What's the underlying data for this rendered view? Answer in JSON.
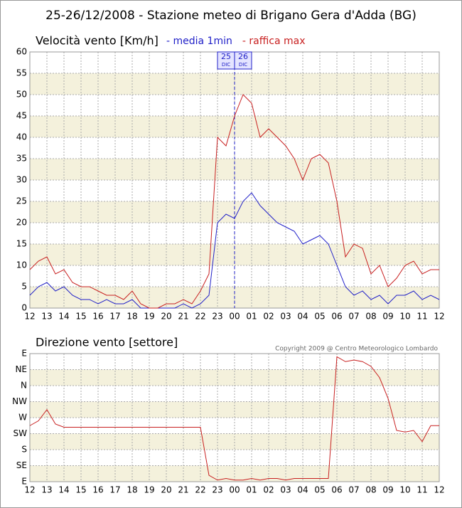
{
  "title": "25-26/12/2008 - Stazione meteo di Brigano Gera d'Adda (BG)",
  "chart_data": [
    {
      "type": "line",
      "title": "Velocità vento [Km/h]",
      "x": [
        0,
        0.5,
        1,
        1.5,
        2,
        2.5,
        3,
        3.5,
        4,
        4.5,
        5,
        5.5,
        6,
        6.5,
        7,
        7.5,
        8,
        8.5,
        9,
        9.5,
        10,
        10.5,
        11,
        11.5,
        12,
        12.5,
        13,
        13.5,
        14,
        14.5,
        15,
        15.5,
        16,
        16.5,
        17,
        17.5,
        18,
        18.5,
        19,
        19.5,
        20,
        20.5,
        21,
        21.5,
        22,
        22.5,
        23,
        23.5,
        24
      ],
      "series": [
        {
          "name": "- media 1min",
          "color": "#2020c8",
          "values": [
            3,
            5,
            6,
            4,
            5,
            3,
            2,
            2,
            1,
            2,
            1,
            1,
            2,
            0,
            0,
            0,
            0,
            0,
            1,
            0,
            1,
            3,
            20,
            22,
            21,
            25,
            27,
            24,
            22,
            20,
            19,
            18,
            15,
            16,
            17,
            15,
            10,
            5,
            3,
            4,
            2,
            3,
            1,
            3,
            3,
            4,
            2,
            3,
            2
          ]
        },
        {
          "name": "- raffica max",
          "color": "#c82020",
          "values": [
            9,
            11,
            12,
            8,
            9,
            6,
            5,
            5,
            4,
            3,
            3,
            2,
            4,
            1,
            0,
            0,
            1,
            1,
            2,
            1,
            4,
            8,
            40,
            38,
            45,
            50,
            48,
            40,
            42,
            40,
            38,
            35,
            30,
            35,
            36,
            34,
            25,
            12,
            15,
            14,
            8,
            10,
            5,
            7,
            10,
            11,
            8,
            9,
            9
          ]
        }
      ],
      "xlim": [
        0,
        24
      ],
      "xticks": [
        {
          "value": 0,
          "label": "12"
        },
        {
          "value": 1,
          "label": "13"
        },
        {
          "value": 2,
          "label": "14"
        },
        {
          "value": 3,
          "label": "15"
        },
        {
          "value": 4,
          "label": "16"
        },
        {
          "value": 5,
          "label": "17"
        },
        {
          "value": 6,
          "label": "18"
        },
        {
          "value": 7,
          "label": "19"
        },
        {
          "value": 8,
          "label": "20"
        },
        {
          "value": 9,
          "label": "21"
        },
        {
          "value": 10,
          "label": "22"
        },
        {
          "value": 11,
          "label": "23"
        },
        {
          "value": 12,
          "label": "00"
        },
        {
          "value": 13,
          "label": "01"
        },
        {
          "value": 14,
          "label": "02"
        },
        {
          "value": 15,
          "label": "03"
        },
        {
          "value": 16,
          "label": "04"
        },
        {
          "value": 17,
          "label": "05"
        },
        {
          "value": 18,
          "label": "06"
        },
        {
          "value": 19,
          "label": "07"
        },
        {
          "value": 20,
          "label": "08"
        },
        {
          "value": 21,
          "label": "09"
        },
        {
          "value": 22,
          "label": "10"
        },
        {
          "value": 23,
          "label": "11"
        },
        {
          "value": 24,
          "label": "12"
        }
      ],
      "ylim": [
        0,
        60
      ],
      "yticks": [
        0,
        5,
        10,
        15,
        20,
        25,
        30,
        35,
        40,
        45,
        50,
        55,
        60
      ],
      "grid": true,
      "band_color": "#f4f1dc",
      "day_marker": {
        "x": 12,
        "color": "#2020c8",
        "before": [
          "25",
          "DIC"
        ],
        "after": [
          "26",
          "DIC"
        ]
      }
    },
    {
      "type": "line",
      "title": "Direzione vento [settore]",
      "annotation": "Copyright 2009 @ Centro Meteorologico Lombardo",
      "x": [
        0,
        0.5,
        1,
        1.5,
        2,
        2.5,
        3,
        3.5,
        4,
        4.5,
        5,
        5.5,
        6,
        6.5,
        7,
        7.5,
        8,
        8.5,
        9,
        9.5,
        10,
        10.5,
        11,
        11.5,
        12,
        12.5,
        13,
        13.5,
        14,
        14.5,
        15,
        15.5,
        16,
        16.5,
        17,
        17.5,
        18,
        18.5,
        19,
        19.5,
        20,
        20.5,
        21,
        21.5,
        22,
        22.5,
        23,
        23.5,
        24
      ],
      "series": [
        {
          "name": null,
          "color": "#c82020",
          "values": [
            3.5,
            3.8,
            4.5,
            3.6,
            3.4,
            3.4,
            3.4,
            3.4,
            3.4,
            3.4,
            3.4,
            3.4,
            3.4,
            3.4,
            3.4,
            3.4,
            3.4,
            3.4,
            3.4,
            3.4,
            3.4,
            0.4,
            0.1,
            0.2,
            0.1,
            0.1,
            0.2,
            0.1,
            0.2,
            0.2,
            0.1,
            0.2,
            0.2,
            0.2,
            0.2,
            0.2,
            7.8,
            7.5,
            7.6,
            7.5,
            7.2,
            6.5,
            5.2,
            3.2,
            3.1,
            3.2,
            2.5,
            3.5,
            3.5
          ]
        }
      ],
      "xlim": [
        0,
        24
      ],
      "xticks": [
        {
          "value": 0,
          "label": "12"
        },
        {
          "value": 1,
          "label": "13"
        },
        {
          "value": 2,
          "label": "14"
        },
        {
          "value": 3,
          "label": "15"
        },
        {
          "value": 4,
          "label": "16"
        },
        {
          "value": 5,
          "label": "17"
        },
        {
          "value": 6,
          "label": "18"
        },
        {
          "value": 7,
          "label": "19"
        },
        {
          "value": 8,
          "label": "20"
        },
        {
          "value": 9,
          "label": "21"
        },
        {
          "value": 10,
          "label": "22"
        },
        {
          "value": 11,
          "label": "23"
        },
        {
          "value": 12,
          "label": "00"
        },
        {
          "value": 13,
          "label": "01"
        },
        {
          "value": 14,
          "label": "02"
        },
        {
          "value": 15,
          "label": "03"
        },
        {
          "value": 16,
          "label": "04"
        },
        {
          "value": 17,
          "label": "05"
        },
        {
          "value": 18,
          "label": "06"
        },
        {
          "value": 19,
          "label": "07"
        },
        {
          "value": 20,
          "label": "08"
        },
        {
          "value": 21,
          "label": "09"
        },
        {
          "value": 22,
          "label": "10"
        },
        {
          "value": 23,
          "label": "11"
        },
        {
          "value": 24,
          "label": "12"
        }
      ],
      "ylim": [
        0,
        8
      ],
      "yticks": [
        {
          "value": 0,
          "label": "E"
        },
        {
          "value": 1,
          "label": "SE"
        },
        {
          "value": 2,
          "label": "S"
        },
        {
          "value": 3,
          "label": "SW"
        },
        {
          "value": 4,
          "label": "W"
        },
        {
          "value": 5,
          "label": "NW"
        },
        {
          "value": 6,
          "label": "N"
        },
        {
          "value": 7,
          "label": "NE"
        },
        {
          "value": 8,
          "label": "E"
        }
      ],
      "grid": true,
      "band_color": "#f4f1dc"
    }
  ]
}
